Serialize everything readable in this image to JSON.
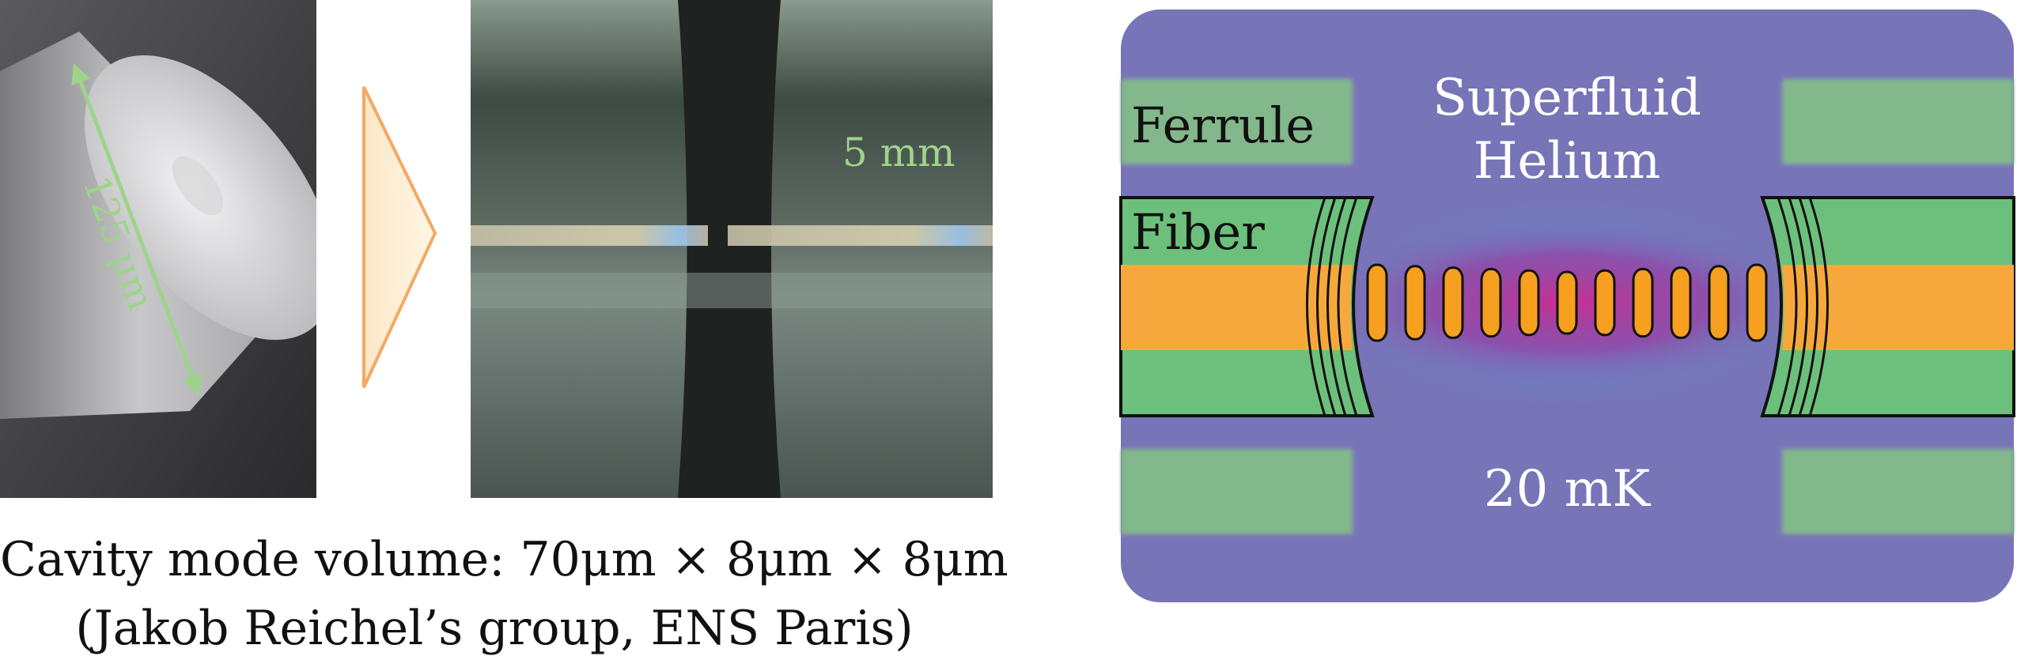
{
  "left_photo": {
    "scale_label": "125 μm"
  },
  "middle_photo": {
    "scale_label": "5 mm"
  },
  "caption": {
    "line1": "Cavity mode volume: 70μm × 8μm × 8μm",
    "line2": "(Jakob Reichel’s group, ENS Paris)"
  },
  "diagram": {
    "label_ferrule": "Ferrule",
    "label_fiber": "Fiber",
    "label_medium_line1": "Superfluid",
    "label_medium_line2": "Helium",
    "label_temperature": "20 mK",
    "colors": {
      "background": "#7874b8",
      "ferrule": "#82b88c",
      "fiber_cladding": "#6cc07c",
      "fiber_core": "#f7a83c",
      "standing_wave_peak": "#f7a020",
      "arrow_label": "#9ed48a",
      "triangle_stroke": "#f4a862"
    },
    "standing_wave_antinodes": 11
  }
}
